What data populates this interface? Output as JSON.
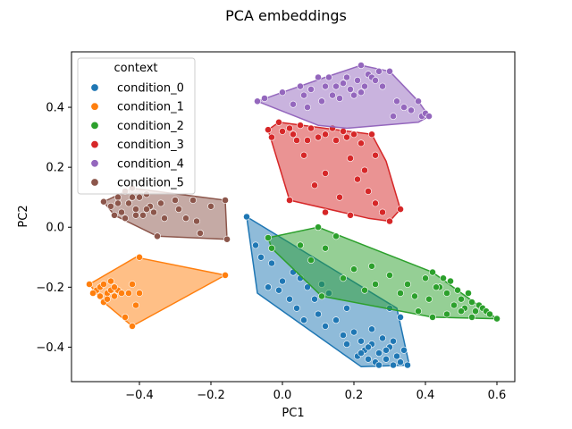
{
  "chart_data": {
    "type": "scatter",
    "title": "PCA embeddings",
    "xlabel": "PC1",
    "ylabel": "PC2",
    "xlim": [
      -0.59,
      0.65
    ],
    "ylim": [
      -0.515,
      0.585
    ],
    "xticks": [
      -0.4,
      -0.2,
      0.0,
      0.2,
      0.4,
      0.6
    ],
    "xtick_labels": [
      "−0.4",
      "−0.2",
      "0.0",
      "0.2",
      "0.4",
      "0.6"
    ],
    "yticks": [
      -0.4,
      -0.2,
      0.0,
      0.2,
      0.4
    ],
    "ytick_labels": [
      "−0.4",
      "−0.2",
      "0.0",
      "0.2",
      "0.4"
    ],
    "grid": false,
    "legend": {
      "title": "context",
      "placement": "upper-left"
    },
    "series": [
      {
        "name": "condition_0",
        "color": "#1f77b4",
        "hull": [
          [
            -0.1,
            0.035
          ],
          [
            0.32,
            -0.27
          ],
          [
            0.355,
            -0.46
          ],
          [
            0.22,
            -0.465
          ],
          [
            -0.07,
            -0.22
          ]
        ],
        "points": [
          [
            -0.1,
            0.035
          ],
          [
            -0.075,
            -0.06
          ],
          [
            -0.06,
            -0.1
          ],
          [
            -0.04,
            -0.2
          ],
          [
            -0.03,
            -0.12
          ],
          [
            -0.01,
            -0.21
          ],
          [
            0.0,
            -0.18
          ],
          [
            0.02,
            -0.24
          ],
          [
            0.03,
            -0.15
          ],
          [
            0.05,
            -0.17
          ],
          [
            0.06,
            -0.31
          ],
          [
            0.07,
            -0.2
          ],
          [
            0.09,
            -0.24
          ],
          [
            0.1,
            -0.29
          ],
          [
            0.12,
            -0.33
          ],
          [
            0.13,
            -0.22
          ],
          [
            0.15,
            -0.31
          ],
          [
            0.17,
            -0.36
          ],
          [
            0.18,
            -0.27
          ],
          [
            0.2,
            -0.35
          ],
          [
            0.21,
            -0.43
          ],
          [
            0.22,
            -0.38
          ],
          [
            0.23,
            -0.41
          ],
          [
            0.24,
            -0.44
          ],
          [
            0.25,
            -0.39
          ],
          [
            0.26,
            -0.45
          ],
          [
            0.27,
            -0.42
          ],
          [
            0.28,
            -0.37
          ],
          [
            0.29,
            -0.44
          ],
          [
            0.3,
            -0.4
          ],
          [
            0.31,
            -0.46
          ],
          [
            0.32,
            -0.43
          ],
          [
            0.33,
            -0.45
          ],
          [
            0.34,
            -0.41
          ],
          [
            0.35,
            -0.46
          ],
          [
            0.27,
            -0.46
          ],
          [
            0.24,
            -0.4
          ],
          [
            0.22,
            -0.42
          ],
          [
            0.29,
            -0.41
          ],
          [
            0.31,
            -0.38
          ],
          [
            0.33,
            -0.3
          ],
          [
            0.25,
            -0.34
          ],
          [
            0.18,
            -0.39
          ],
          [
            0.11,
            -0.19
          ],
          [
            0.04,
            -0.27
          ],
          [
            0.3,
            -0.27
          ]
        ]
      },
      {
        "name": "condition_1",
        "color": "#ff7f0e",
        "hull": [
          [
            -0.16,
            -0.16
          ],
          [
            -0.41,
            -0.1
          ],
          [
            -0.54,
            -0.19
          ],
          [
            -0.5,
            -0.25
          ],
          [
            -0.42,
            -0.33
          ]
        ],
        "points": [
          [
            -0.16,
            -0.16
          ],
          [
            -0.4,
            -0.1
          ],
          [
            -0.54,
            -0.19
          ],
          [
            -0.52,
            -0.21
          ],
          [
            -0.5,
            -0.25
          ],
          [
            -0.51,
            -0.2
          ],
          [
            -0.49,
            -0.22
          ],
          [
            -0.48,
            -0.18
          ],
          [
            -0.47,
            -0.23
          ],
          [
            -0.46,
            -0.21
          ],
          [
            -0.5,
            -0.19
          ],
          [
            -0.49,
            -0.24
          ],
          [
            -0.53,
            -0.22
          ],
          [
            -0.45,
            -0.22
          ],
          [
            -0.44,
            -0.3
          ],
          [
            -0.42,
            -0.33
          ],
          [
            -0.43,
            -0.22
          ],
          [
            -0.41,
            -0.26
          ],
          [
            -0.4,
            -0.22
          ],
          [
            -0.42,
            -0.19
          ],
          [
            -0.48,
            -0.21
          ],
          [
            -0.51,
            -0.23
          ],
          [
            -0.47,
            -0.2
          ]
        ]
      },
      {
        "name": "condition_2",
        "color": "#2ca02c",
        "hull": [
          [
            -0.04,
            -0.035
          ],
          [
            0.1,
            0.0
          ],
          [
            0.42,
            -0.15
          ],
          [
            0.6,
            -0.305
          ],
          [
            0.42,
            -0.3
          ],
          [
            0.11,
            -0.23
          ],
          [
            -0.03,
            -0.07
          ]
        ],
        "points": [
          [
            -0.04,
            -0.035
          ],
          [
            -0.03,
            -0.07
          ],
          [
            0.05,
            -0.06
          ],
          [
            0.08,
            -0.11
          ],
          [
            0.1,
            0.0
          ],
          [
            0.11,
            -0.23
          ],
          [
            0.12,
            -0.07
          ],
          [
            0.15,
            -0.03
          ],
          [
            0.17,
            -0.17
          ],
          [
            0.2,
            -0.14
          ],
          [
            0.23,
            -0.21
          ],
          [
            0.26,
            -0.19
          ],
          [
            0.3,
            -0.16
          ],
          [
            0.33,
            -0.22
          ],
          [
            0.37,
            -0.23
          ],
          [
            0.4,
            -0.17
          ],
          [
            0.42,
            -0.15
          ],
          [
            0.44,
            -0.2
          ],
          [
            0.45,
            -0.17
          ],
          [
            0.46,
            -0.22
          ],
          [
            0.47,
            -0.18
          ],
          [
            0.48,
            -0.26
          ],
          [
            0.49,
            -0.21
          ],
          [
            0.5,
            -0.24
          ],
          [
            0.51,
            -0.27
          ],
          [
            0.52,
            -0.22
          ],
          [
            0.53,
            -0.25
          ],
          [
            0.54,
            -0.28
          ],
          [
            0.55,
            -0.26
          ],
          [
            0.56,
            -0.27
          ],
          [
            0.57,
            -0.28
          ],
          [
            0.58,
            -0.29
          ],
          [
            0.6,
            -0.305
          ],
          [
            0.42,
            -0.3
          ],
          [
            0.38,
            -0.28
          ],
          [
            0.46,
            -0.29
          ],
          [
            0.43,
            -0.2
          ],
          [
            0.41,
            -0.24
          ],
          [
            0.5,
            -0.28
          ],
          [
            0.53,
            -0.3
          ],
          [
            0.35,
            -0.19
          ],
          [
            0.25,
            -0.13
          ]
        ]
      },
      {
        "name": "condition_3",
        "color": "#d62728",
        "hull": [
          [
            -0.04,
            0.325
          ],
          [
            -0.01,
            0.35
          ],
          [
            0.25,
            0.31
          ],
          [
            0.29,
            0.22
          ],
          [
            0.33,
            0.06
          ],
          [
            0.3,
            0.02
          ],
          [
            0.24,
            0.03
          ],
          [
            0.02,
            0.09
          ]
        ],
        "points": [
          [
            -0.04,
            0.325
          ],
          [
            -0.03,
            0.3
          ],
          [
            -0.01,
            0.35
          ],
          [
            0.0,
            0.32
          ],
          [
            0.02,
            0.33
          ],
          [
            0.03,
            0.31
          ],
          [
            0.05,
            0.34
          ],
          [
            0.07,
            0.29
          ],
          [
            0.08,
            0.33
          ],
          [
            0.1,
            0.3
          ],
          [
            0.12,
            0.31
          ],
          [
            0.14,
            0.33
          ],
          [
            0.15,
            0.29
          ],
          [
            0.17,
            0.32
          ],
          [
            0.18,
            0.3
          ],
          [
            0.2,
            0.31
          ],
          [
            0.22,
            0.28
          ],
          [
            0.25,
            0.31
          ],
          [
            0.26,
            0.24
          ],
          [
            0.23,
            0.19
          ],
          [
            0.19,
            0.23
          ],
          [
            0.21,
            0.16
          ],
          [
            0.24,
            0.12
          ],
          [
            0.26,
            0.08
          ],
          [
            0.28,
            0.05
          ],
          [
            0.3,
            0.02
          ],
          [
            0.33,
            0.06
          ],
          [
            0.19,
            0.04
          ],
          [
            0.16,
            0.1
          ],
          [
            0.12,
            0.18
          ],
          [
            0.09,
            0.14
          ],
          [
            0.06,
            0.24
          ],
          [
            0.12,
            0.05
          ],
          [
            0.04,
            0.29
          ],
          [
            0.02,
            0.09
          ]
        ]
      },
      {
        "name": "condition_4",
        "color": "#9467bd",
        "hull": [
          [
            -0.07,
            0.42
          ],
          [
            0.0,
            0.45
          ],
          [
            0.12,
            0.5
          ],
          [
            0.22,
            0.54
          ],
          [
            0.3,
            0.52
          ],
          [
            0.38,
            0.42
          ],
          [
            0.41,
            0.37
          ],
          [
            0.38,
            0.35
          ],
          [
            0.18,
            0.33
          ],
          [
            0.1,
            0.34
          ]
        ],
        "points": [
          [
            -0.07,
            0.42
          ],
          [
            -0.05,
            0.43
          ],
          [
            0.0,
            0.45
          ],
          [
            0.03,
            0.41
          ],
          [
            0.05,
            0.47
          ],
          [
            0.07,
            0.4
          ],
          [
            0.08,
            0.46
          ],
          [
            0.1,
            0.5
          ],
          [
            0.11,
            0.42
          ],
          [
            0.12,
            0.47
          ],
          [
            0.13,
            0.5
          ],
          [
            0.15,
            0.47
          ],
          [
            0.16,
            0.43
          ],
          [
            0.17,
            0.48
          ],
          [
            0.18,
            0.5
          ],
          [
            0.19,
            0.46
          ],
          [
            0.2,
            0.44
          ],
          [
            0.21,
            0.49
          ],
          [
            0.22,
            0.54
          ],
          [
            0.23,
            0.47
          ],
          [
            0.24,
            0.51
          ],
          [
            0.25,
            0.5
          ],
          [
            0.26,
            0.49
          ],
          [
            0.27,
            0.52
          ],
          [
            0.28,
            0.47
          ],
          [
            0.3,
            0.52
          ],
          [
            0.31,
            0.37
          ],
          [
            0.32,
            0.42
          ],
          [
            0.34,
            0.4
          ],
          [
            0.36,
            0.39
          ],
          [
            0.38,
            0.42
          ],
          [
            0.39,
            0.37
          ],
          [
            0.4,
            0.38
          ],
          [
            0.41,
            0.37
          ],
          [
            0.22,
            0.45
          ],
          [
            0.14,
            0.44
          ],
          [
            0.06,
            0.44
          ]
        ]
      },
      {
        "name": "condition_5",
        "color": "#8c564b",
        "hull": [
          [
            -0.5,
            0.085
          ],
          [
            -0.42,
            0.13
          ],
          [
            -0.16,
            0.09
          ],
          [
            -0.155,
            -0.04
          ],
          [
            -0.35,
            -0.03
          ],
          [
            -0.47,
            0.04
          ]
        ],
        "points": [
          [
            -0.5,
            0.085
          ],
          [
            -0.48,
            0.07
          ],
          [
            -0.47,
            0.04
          ],
          [
            -0.46,
            0.1
          ],
          [
            -0.45,
            0.05
          ],
          [
            -0.44,
            0.12
          ],
          [
            -0.43,
            0.08
          ],
          [
            -0.42,
            0.13
          ],
          [
            -0.41,
            0.06
          ],
          [
            -0.4,
            0.1
          ],
          [
            -0.39,
            0.04
          ],
          [
            -0.38,
            0.11
          ],
          [
            -0.37,
            0.07
          ],
          [
            -0.36,
            0.05
          ],
          [
            -0.35,
            -0.03
          ],
          [
            -0.34,
            0.08
          ],
          [
            -0.33,
            0.03
          ],
          [
            -0.3,
            0.09
          ],
          [
            -0.29,
            0.06
          ],
          [
            -0.27,
            0.03
          ],
          [
            -0.25,
            0.09
          ],
          [
            -0.24,
            0.02
          ],
          [
            -0.23,
            -0.02
          ],
          [
            -0.2,
            0.07
          ],
          [
            -0.16,
            0.09
          ],
          [
            -0.155,
            -0.04
          ],
          [
            -0.44,
            0.03
          ],
          [
            -0.42,
            0.1
          ],
          [
            -0.46,
            0.08
          ],
          [
            -0.41,
            0.04
          ],
          [
            -0.38,
            0.06
          ]
        ]
      }
    ]
  }
}
